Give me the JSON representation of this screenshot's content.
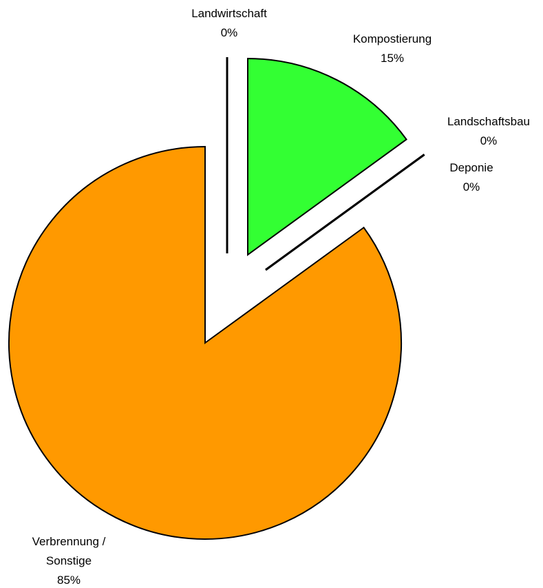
{
  "chart_data": {
    "type": "pie",
    "categories": [
      "Landwirtschaft",
      "Kompostierung",
      "Landschaftsbau",
      "Deponie",
      "Verbrennung / Sonstige"
    ],
    "values": [
      0,
      15,
      0,
      0,
      85
    ],
    "value_labels": [
      "0%",
      "15%",
      "0%",
      "0%",
      "85%"
    ],
    "colors": [
      "#000000",
      "#33ff33",
      "#000000",
      "#000000",
      "#ff9900"
    ]
  }
}
